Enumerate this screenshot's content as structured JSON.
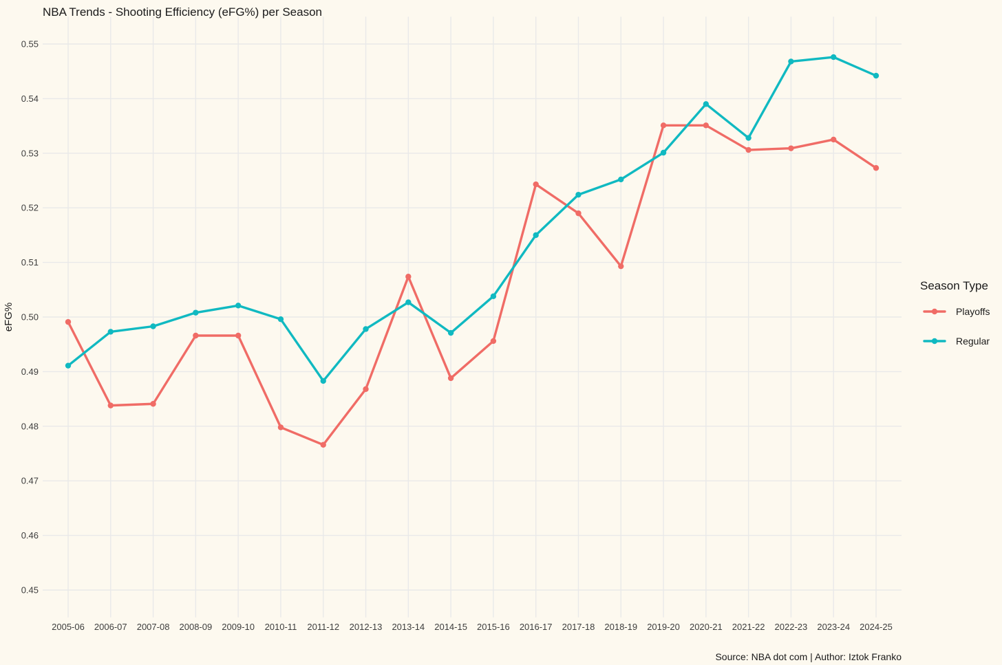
{
  "chart_data": {
    "type": "line",
    "title": "NBA Trends - Shooting Efficiency (eFG%) per Season",
    "xlabel": "",
    "ylabel": "eFG%",
    "caption": "Source: NBA dot com | Author: Iztok Franko",
    "categories": [
      "2005-06",
      "2006-07",
      "2007-08",
      "2008-09",
      "2009-10",
      "2010-11",
      "2011-12",
      "2012-13",
      "2013-14",
      "2014-15",
      "2015-16",
      "2016-17",
      "2017-18",
      "2018-19",
      "2019-20",
      "2020-21",
      "2021-22",
      "2022-23",
      "2023-24",
      "2024-25"
    ],
    "ylim": [
      0.445,
      0.555
    ],
    "yticks": [
      0.45,
      0.46,
      0.47,
      0.48,
      0.49,
      0.5,
      0.51,
      0.52,
      0.53,
      0.54,
      0.55
    ],
    "ytick_labels": [
      "0.45",
      "0.46",
      "0.47",
      "0.48",
      "0.49",
      "0.50",
      "0.51",
      "0.52",
      "0.53",
      "0.54",
      "0.55"
    ],
    "grid": true,
    "legend": {
      "title": "Season Type",
      "position": "right"
    },
    "series": [
      {
        "name": "Playoffs",
        "color": "#f06c66",
        "values": [
          0.4991,
          0.4838,
          0.4841,
          0.4966,
          0.4966,
          0.4798,
          0.4766,
          0.4868,
          0.5074,
          0.4888,
          0.4956,
          0.5243,
          0.519,
          0.5093,
          0.5351,
          0.5351,
          0.5306,
          0.5309,
          0.5325,
          0.5273
        ]
      },
      {
        "name": "Regular",
        "color": "#10b9c1",
        "values": [
          0.4911,
          0.4973,
          0.4983,
          0.5008,
          0.5021,
          0.4996,
          0.4883,
          0.4978,
          0.5027,
          0.4971,
          0.5038,
          0.515,
          0.5224,
          0.5252,
          0.5301,
          0.539,
          0.5328,
          0.5468,
          0.5476,
          0.5442
        ]
      }
    ]
  }
}
